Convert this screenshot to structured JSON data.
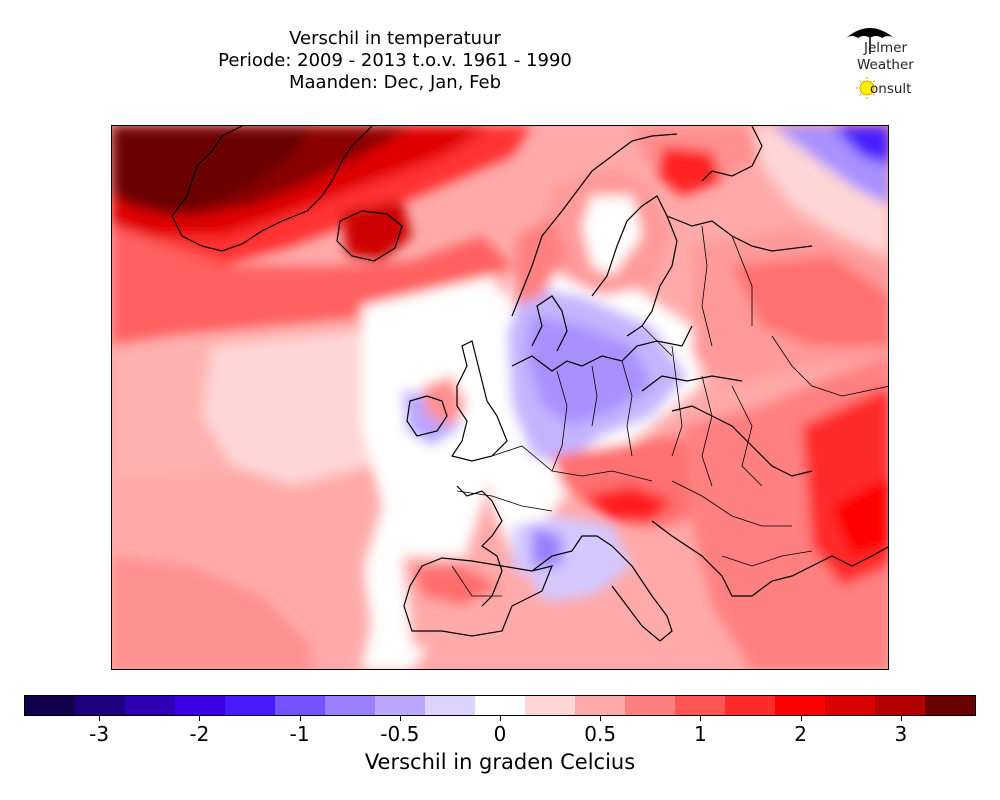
{
  "title": {
    "line1": "Verschil in temperatuur",
    "line2": "Periode: 2009 - 2013 t.o.v. 1961 - 1990",
    "line3": "Maanden: Dec, Jan, Feb"
  },
  "logo": {
    "line1": "Jelmer",
    "line2": "Weather",
    "line3": "onsult",
    "icons": [
      "umbrella-icon",
      "sun-icon"
    ]
  },
  "map": {
    "region": "Europe",
    "variable": "temperature anomaly",
    "colors": {
      "strong_warm": "#6a0000",
      "warm": "#ff2020",
      "mild_warm": "#ffaaaa",
      "neutral": "#ffffff",
      "cool": "#c4b4ff",
      "cold": "#4a1aff",
      "coastline": "#000000"
    }
  },
  "colorbar": {
    "label": "Verschil in graden Celcius",
    "ticks": [
      "-3",
      "-2",
      "-1",
      "-0.5",
      "0",
      "0.5",
      "1",
      "2",
      "3"
    ],
    "tick_values": [
      -3,
      -2,
      -1,
      -0.5,
      0,
      0.5,
      1,
      2,
      3
    ],
    "colors": [
      "#12004d",
      "#1f0080",
      "#2e00b3",
      "#3b00e6",
      "#4a1aff",
      "#7452ff",
      "#9a80ff",
      "#bca8ff",
      "#dcd4ff",
      "#ffffff",
      "#ffd6d6",
      "#ffaaaa",
      "#ff8080",
      "#ff5555",
      "#ff2a2a",
      "#ff0000",
      "#d90000",
      "#b30000",
      "#6b0000"
    ]
  }
}
